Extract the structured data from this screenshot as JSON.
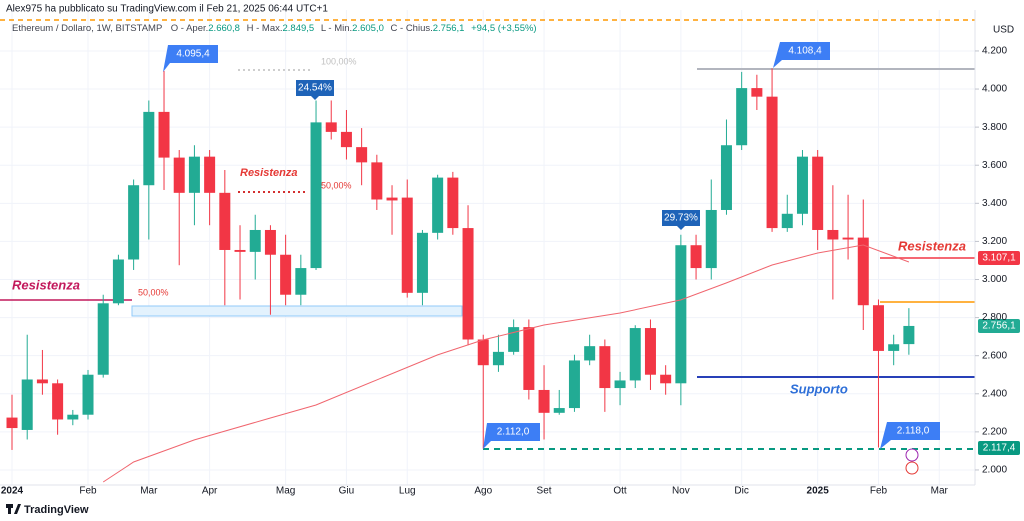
{
  "header": {
    "author_line": "Alex975 ha pubblicato su TradingView.com il Feb 21, 2025 06:44 UTC+1",
    "symbol": "Ethereum / Dollaro, 1W, BITSTAMP",
    "ohlc": [
      [
        "O - Aper.",
        "2.660,8"
      ],
      [
        "H - Max.",
        "2.849,5"
      ],
      [
        "L - Min.",
        "2.605,0"
      ],
      [
        "C - Chius.",
        "2.756,1"
      ]
    ],
    "change": "+94,5 (+3,55%)"
  },
  "chart_data": {
    "type": "candlestick",
    "open": [
      2275,
      2210,
      2475,
      2455,
      2265,
      2290,
      2500,
      2875,
      3105,
      3495,
      3880,
      3640,
      3455,
      3645,
      3455,
      3155,
      3145,
      3260,
      3130,
      2920,
      3060,
      3825,
      3775,
      3695,
      3615,
      3430,
      3430,
      2930,
      3245,
      3535,
      3270,
      2685,
      2550,
      2620,
      2750,
      2420,
      2300,
      2325,
      2575,
      2650,
      2430,
      2470,
      2745,
      2500,
      2455,
      3180,
      3060,
      3365,
      3705,
      4005,
      3960,
      3270,
      3345,
      3645,
      3260,
      3220,
      3220,
      2865,
      2625,
      2660.8
    ],
    "high": [
      2395,
      2710,
      2630,
      2475,
      2315,
      2525,
      2920,
      3130,
      3525,
      3940,
      4095.4,
      3680,
      3705,
      3680,
      3575,
      3285,
      3340,
      3285,
      3235,
      3130,
      3940,
      3940,
      3890,
      3795,
      3655,
      3495,
      3525,
      3260,
      3550,
      3565,
      3390,
      2710,
      2710,
      2790,
      2790,
      2550,
      2420,
      2605,
      2710,
      2685,
      2515,
      2760,
      2790,
      2550,
      3235,
      3235,
      3525,
      3840,
      4090,
      4075,
      4108.4,
      3445,
      3680,
      3680,
      3495,
      3445,
      3420,
      2895,
      2710,
      2849.5
    ],
    "low": [
      2105,
      2160,
      2395,
      2185,
      2235,
      2265,
      2485,
      2865,
      3050,
      3210,
      3470,
      3075,
      3285,
      3285,
      2865,
      2895,
      3000,
      2815,
      2865,
      2865,
      3050,
      3735,
      3630,
      3495,
      3365,
      3235,
      2905,
      2865,
      3210,
      3235,
      2655,
      2112,
      2515,
      2605,
      2370,
      2160,
      2290,
      2305,
      2550,
      2305,
      2340,
      2430,
      2420,
      2395,
      2340,
      3000,
      3000,
      3340,
      3680,
      3890,
      3250,
      3250,
      3285,
      3155,
      2895,
      3105,
      2735,
      2118,
      2550,
      2605
    ],
    "close": [
      2220,
      2475,
      2455,
      2265,
      2290,
      2500,
      2875,
      3105,
      3495,
      3880,
      3640,
      3455,
      3645,
      3455,
      3155,
      3145,
      3260,
      3130,
      2920,
      3060,
      3825,
      3775,
      3695,
      3615,
      3420,
      3415,
      2930,
      3245,
      3535,
      3270,
      2685,
      2550,
      2620,
      2750,
      2420,
      2300,
      2325,
      2575,
      2650,
      2430,
      2470,
      2745,
      2500,
      2455,
      3180,
      3060,
      3365,
      3705,
      4005,
      3960,
      3270,
      3345,
      3645,
      3260,
      3210,
      3210,
      2865,
      2625,
      2660,
      2756.1
    ],
    "up_color": "#22ab94",
    "down_color": "#f23645",
    "ma": {
      "x": [
        6,
        8,
        12,
        17,
        20,
        24,
        28,
        31,
        35,
        40,
        44,
        47,
        50,
        53,
        56,
        59
      ],
      "values": [
        1937,
        2042,
        2158,
        2273,
        2341,
        2473,
        2604,
        2683,
        2761,
        2824,
        2893,
        2982,
        3076,
        3139,
        3181,
        3092
      ],
      "color": "#f0656e"
    },
    "xlim": [
      -0.79,
      63.35
    ],
    "xticks": [
      {
        "value": 0,
        "label": "2024"
      },
      {
        "value": 5,
        "label": "Feb"
      },
      {
        "value": 9,
        "label": "Mar"
      },
      {
        "value": 13,
        "label": "Apr"
      },
      {
        "value": 18,
        "label": "Mag"
      },
      {
        "value": 22,
        "label": "Giu"
      },
      {
        "value": 26,
        "label": "Lug"
      },
      {
        "value": 31,
        "label": "Ago"
      },
      {
        "value": 35,
        "label": "Set"
      },
      {
        "value": 40,
        "label": "Ott"
      },
      {
        "value": 44,
        "label": "Nov"
      },
      {
        "value": 48,
        "label": "Dic"
      },
      {
        "value": 53,
        "label": "2025"
      },
      {
        "value": 57,
        "label": "Feb"
      },
      {
        "value": 61,
        "label": "Mar"
      }
    ],
    "ylim": [
      1921,
      4415
    ],
    "yticks": [
      {
        "value": 2000,
        "label": "2.000"
      },
      {
        "value": 2200,
        "label": "2.200"
      },
      {
        "value": 2400,
        "label": "2.400"
      },
      {
        "value": 2600,
        "label": "2.600"
      },
      {
        "value": 2800,
        "label": "2.800"
      },
      {
        "value": 3000,
        "label": "3.000"
      },
      {
        "value": 3200,
        "label": "3.200"
      },
      {
        "value": 3400,
        "label": "3.400"
      },
      {
        "value": 3600,
        "label": "3.600"
      },
      {
        "value": 3800,
        "label": "3.800"
      },
      {
        "value": 4000,
        "label": "4.000"
      },
      {
        "value": 4200,
        "label": "4.200"
      }
    ],
    "grid": true,
    "y_unit": "USD",
    "annotations": {
      "callouts": [
        "4.095,4",
        "4.108,4",
        "2.112,0",
        "2.118,0"
      ],
      "percent_boxes": [
        "24.54%",
        "29.73%"
      ],
      "fib_labels": [
        "100,00%",
        "50,00%",
        "50,00%"
      ],
      "resistance": [
        "Resistenza",
        "Resistenza",
        "Resistenza"
      ],
      "support": "Supporto",
      "price_labels": [
        "3.107,1",
        "2.756,1",
        "2.117,4"
      ]
    }
  },
  "footer": {
    "brand": "TradingView"
  }
}
